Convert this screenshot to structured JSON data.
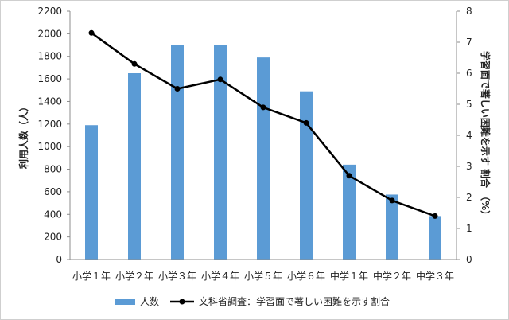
{
  "chart_data": {
    "type": "bar",
    "categories": [
      "小学１年",
      "小学２年",
      "小学３年",
      "小学４年",
      "小学５年",
      "小学６年",
      "中学１年",
      "中学２年",
      "中学３年"
    ],
    "series": [
      {
        "name": "人数",
        "type": "bar",
        "axis": "left",
        "color": "#5b9bd5",
        "values": [
          1190,
          1650,
          1900,
          1900,
          1790,
          1490,
          840,
          575,
          385
        ]
      },
      {
        "name": "文科省調査：学習面で著しい困難を示す割合",
        "type": "line",
        "axis": "right",
        "color": "#000000",
        "values": [
          7.3,
          6.3,
          5.5,
          5.8,
          4.9,
          4.4,
          2.7,
          1.9,
          1.4
        ]
      }
    ],
    "ylabel": "利用人数（人）",
    "ylabel_right": "学習面で著しい困難を示す 割合 （%）",
    "ylim": [
      0,
      2200
    ],
    "ylim_right": [
      0,
      8
    ],
    "yticks": [
      0,
      200,
      400,
      600,
      800,
      1000,
      1200,
      1400,
      1600,
      1800,
      2000,
      2200
    ],
    "yticks_right": [
      0,
      1,
      2,
      3,
      4,
      5,
      6,
      7,
      8
    ],
    "grid": false,
    "legend_position": "bottom"
  }
}
